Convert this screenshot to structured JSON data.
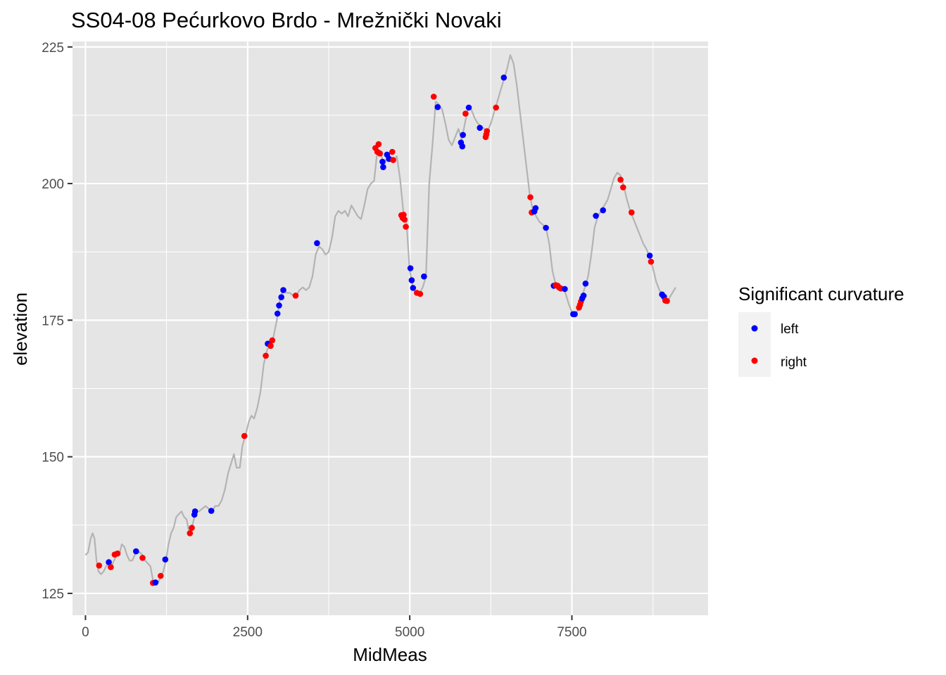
{
  "chart_data": {
    "type": "scatter",
    "title": "SS04-08 Pećurkovo Brdo - Mrežnički Novaki",
    "xlabel": "MidMeas",
    "ylabel": "elevation",
    "xlim": [
      -200,
      9600
    ],
    "ylim": [
      121,
      226
    ],
    "x_ticks": [
      0,
      2500,
      5000,
      7500
    ],
    "x_tick_labels": [
      "0",
      "2500",
      "5000",
      "7500"
    ],
    "y_ticks": [
      125,
      150,
      175,
      200,
      225
    ],
    "y_tick_labels": [
      "125",
      "150",
      "175",
      "200",
      "225"
    ],
    "grid": true,
    "legend": {
      "title": "Significant curvature",
      "position": "right",
      "entries": [
        {
          "label": "left",
          "color": "#0000ff"
        },
        {
          "label": "right",
          "color": "#ff0000"
        }
      ]
    },
    "colors": {
      "panel": "#e5e5e5",
      "grid": "#ffffff",
      "line": "#b3b3b3",
      "left": "#0000ff",
      "right": "#ff0000"
    },
    "line_series": [
      [
        0,
        132
      ],
      [
        40,
        132.5
      ],
      [
        80,
        135
      ],
      [
        110,
        136
      ],
      [
        140,
        135
      ],
      [
        170,
        131
      ],
      [
        200,
        129
      ],
      [
        240,
        128.5
      ],
      [
        280,
        129
      ],
      [
        320,
        130
      ],
      [
        360,
        130.5
      ],
      [
        400,
        130
      ],
      [
        440,
        131
      ],
      [
        480,
        132
      ],
      [
        520,
        132
      ],
      [
        560,
        134
      ],
      [
        600,
        133.5
      ],
      [
        640,
        132
      ],
      [
        680,
        131
      ],
      [
        720,
        131
      ],
      [
        780,
        132.5
      ],
      [
        840,
        132.5
      ],
      [
        880,
        132
      ],
      [
        920,
        131
      ],
      [
        960,
        130.5
      ],
      [
        1000,
        130
      ],
      [
        1040,
        127.5
      ],
      [
        1080,
        127
      ],
      [
        1120,
        127
      ],
      [
        1160,
        128
      ],
      [
        1200,
        129
      ],
      [
        1240,
        131
      ],
      [
        1280,
        134
      ],
      [
        1320,
        136
      ],
      [
        1360,
        137
      ],
      [
        1400,
        139
      ],
      [
        1440,
        139.5
      ],
      [
        1480,
        140
      ],
      [
        1520,
        139
      ],
      [
        1560,
        138.5
      ],
      [
        1600,
        136
      ],
      [
        1650,
        137.5
      ],
      [
        1700,
        140
      ],
      [
        1750,
        140
      ],
      [
        1800,
        140.5
      ],
      [
        1850,
        141
      ],
      [
        1900,
        140.5
      ],
      [
        1950,
        140
      ],
      [
        2000,
        141
      ],
      [
        2050,
        141
      ],
      [
        2100,
        142
      ],
      [
        2150,
        144
      ],
      [
        2200,
        147
      ],
      [
        2250,
        149
      ],
      [
        2290,
        150.5
      ],
      [
        2330,
        148
      ],
      [
        2380,
        148
      ],
      [
        2420,
        152
      ],
      [
        2470,
        154
      ],
      [
        2520,
        156.5
      ],
      [
        2560,
        157.5
      ],
      [
        2600,
        157
      ],
      [
        2650,
        159
      ],
      [
        2700,
        162
      ],
      [
        2750,
        167
      ],
      [
        2800,
        169.5
      ],
      [
        2860,
        171
      ],
      [
        2900,
        172
      ],
      [
        2950,
        175
      ],
      [
        3000,
        179
      ],
      [
        3050,
        180.5
      ],
      [
        3100,
        180
      ],
      [
        3150,
        180
      ],
      [
        3200,
        179.5
      ],
      [
        3250,
        179.5
      ],
      [
        3300,
        180.5
      ],
      [
        3350,
        181
      ],
      [
        3400,
        180.5
      ],
      [
        3450,
        181
      ],
      [
        3500,
        183
      ],
      [
        3550,
        187
      ],
      [
        3600,
        188.5
      ],
      [
        3650,
        188
      ],
      [
        3700,
        187
      ],
      [
        3750,
        187.5
      ],
      [
        3800,
        190
      ],
      [
        3850,
        194
      ],
      [
        3900,
        195
      ],
      [
        3950,
        194.5
      ],
      [
        4000,
        195
      ],
      [
        4050,
        194
      ],
      [
        4100,
        196
      ],
      [
        4150,
        195
      ],
      [
        4200,
        194
      ],
      [
        4250,
        193.5
      ],
      [
        4300,
        196
      ],
      [
        4350,
        199
      ],
      [
        4400,
        200
      ],
      [
        4450,
        200.5
      ],
      [
        4500,
        206
      ],
      [
        4550,
        206
      ],
      [
        4600,
        203
      ],
      [
        4650,
        205
      ],
      [
        4700,
        205
      ],
      [
        4750,
        204
      ],
      [
        4800,
        205
      ],
      [
        4850,
        201
      ],
      [
        4900,
        195
      ],
      [
        4950,
        193
      ],
      [
        5000,
        184
      ],
      [
        5050,
        181
      ],
      [
        5100,
        180
      ],
      [
        5150,
        180
      ],
      [
        5200,
        181
      ],
      [
        5250,
        183
      ],
      [
        5300,
        200
      ],
      [
        5350,
        207
      ],
      [
        5400,
        215
      ],
      [
        5450,
        214.5
      ],
      [
        5500,
        213.5
      ],
      [
        5550,
        211
      ],
      [
        5600,
        208
      ],
      [
        5650,
        207
      ],
      [
        5700,
        208.5
      ],
      [
        5750,
        210
      ],
      [
        5800,
        208
      ],
      [
        5850,
        211
      ],
      [
        5900,
        214
      ],
      [
        5950,
        213.5
      ],
      [
        6000,
        212
      ],
      [
        6050,
        211
      ],
      [
        6100,
        210.5
      ],
      [
        6150,
        210
      ],
      [
        6200,
        209.5
      ],
      [
        6250,
        211
      ],
      [
        6300,
        213
      ],
      [
        6350,
        215
      ],
      [
        6400,
        217
      ],
      [
        6450,
        219
      ],
      [
        6500,
        221
      ],
      [
        6550,
        223.5
      ],
      [
        6600,
        222
      ],
      [
        6650,
        218
      ],
      [
        6700,
        213
      ],
      [
        6750,
        208
      ],
      [
        6800,
        203
      ],
      [
        6850,
        198
      ],
      [
        6900,
        195
      ],
      [
        6950,
        194
      ],
      [
        7000,
        193
      ],
      [
        7050,
        192.5
      ],
      [
        7100,
        192
      ],
      [
        7150,
        189
      ],
      [
        7200,
        184
      ],
      [
        7250,
        181.5
      ],
      [
        7300,
        181
      ],
      [
        7350,
        181
      ],
      [
        7400,
        180
      ],
      [
        7450,
        178
      ],
      [
        7500,
        176.5
      ],
      [
        7550,
        176
      ],
      [
        7600,
        177
      ],
      [
        7650,
        179
      ],
      [
        7700,
        181
      ],
      [
        7750,
        183
      ],
      [
        7800,
        187
      ],
      [
        7850,
        192
      ],
      [
        7900,
        194
      ],
      [
        7950,
        195
      ],
      [
        8000,
        196
      ],
      [
        8050,
        197
      ],
      [
        8100,
        199
      ],
      [
        8150,
        201
      ],
      [
        8200,
        202
      ],
      [
        8250,
        201.5
      ],
      [
        8300,
        199.5
      ],
      [
        8350,
        197
      ],
      [
        8400,
        195
      ],
      [
        8450,
        193.5
      ],
      [
        8500,
        192
      ],
      [
        8550,
        190.5
      ],
      [
        8600,
        189
      ],
      [
        8650,
        188
      ],
      [
        8700,
        186.5
      ],
      [
        8750,
        184.5
      ],
      [
        8800,
        182
      ],
      [
        8850,
        180.5
      ],
      [
        8900,
        179.5
      ],
      [
        8950,
        178.5
      ],
      [
        9000,
        179
      ],
      [
        9050,
        180
      ],
      [
        9100,
        181
      ]
    ],
    "points": [
      {
        "x": 210,
        "y": 130.1,
        "side": "right"
      },
      {
        "x": 360,
        "y": 130.7,
        "side": "left"
      },
      {
        "x": 390,
        "y": 129.8,
        "side": "right"
      },
      {
        "x": 450,
        "y": 132.1,
        "side": "right"
      },
      {
        "x": 495,
        "y": 132.3,
        "side": "right"
      },
      {
        "x": 780,
        "y": 132.7,
        "side": "left"
      },
      {
        "x": 880,
        "y": 131.5,
        "side": "right"
      },
      {
        "x": 1040,
        "y": 126.9,
        "side": "right"
      },
      {
        "x": 1080,
        "y": 127,
        "side": "left"
      },
      {
        "x": 1160,
        "y": 128.2,
        "side": "right"
      },
      {
        "x": 1230,
        "y": 131.2,
        "side": "left"
      },
      {
        "x": 1610,
        "y": 136,
        "side": "right"
      },
      {
        "x": 1640,
        "y": 137,
        "side": "right"
      },
      {
        "x": 1680,
        "y": 139.4,
        "side": "left"
      },
      {
        "x": 1690,
        "y": 140,
        "side": "left"
      },
      {
        "x": 1940,
        "y": 140.1,
        "side": "left"
      },
      {
        "x": 2450,
        "y": 153.8,
        "side": "right"
      },
      {
        "x": 2780,
        "y": 168.5,
        "side": "right"
      },
      {
        "x": 2810,
        "y": 170.7,
        "side": "left"
      },
      {
        "x": 2855,
        "y": 170.3,
        "side": "right"
      },
      {
        "x": 2880,
        "y": 171.3,
        "side": "right"
      },
      {
        "x": 2960,
        "y": 176.2,
        "side": "left"
      },
      {
        "x": 2985,
        "y": 177.7,
        "side": "left"
      },
      {
        "x": 3020,
        "y": 179.2,
        "side": "left"
      },
      {
        "x": 3050,
        "y": 180.5,
        "side": "left"
      },
      {
        "x": 3240,
        "y": 179.5,
        "side": "right"
      },
      {
        "x": 3570,
        "y": 189.1,
        "side": "left"
      },
      {
        "x": 4470,
        "y": 206.5,
        "side": "right"
      },
      {
        "x": 4500,
        "y": 205.8,
        "side": "right"
      },
      {
        "x": 4520,
        "y": 207.2,
        "side": "right"
      },
      {
        "x": 4540,
        "y": 205.5,
        "side": "right"
      },
      {
        "x": 4580,
        "y": 204,
        "side": "left"
      },
      {
        "x": 4590,
        "y": 203,
        "side": "left"
      },
      {
        "x": 4650,
        "y": 205.3,
        "side": "left"
      },
      {
        "x": 4680,
        "y": 204.5,
        "side": "left"
      },
      {
        "x": 4730,
        "y": 205.8,
        "side": "right"
      },
      {
        "x": 4745,
        "y": 204.3,
        "side": "right"
      },
      {
        "x": 4870,
        "y": 194.2,
        "side": "right"
      },
      {
        "x": 4890,
        "y": 193.7,
        "side": "right"
      },
      {
        "x": 4905,
        "y": 194.3,
        "side": "right"
      },
      {
        "x": 4920,
        "y": 193.4,
        "side": "right"
      },
      {
        "x": 4940,
        "y": 192.1,
        "side": "right"
      },
      {
        "x": 5010,
        "y": 184.5,
        "side": "left"
      },
      {
        "x": 5030,
        "y": 182.3,
        "side": "left"
      },
      {
        "x": 5050,
        "y": 180.9,
        "side": "left"
      },
      {
        "x": 5110,
        "y": 180,
        "side": "right"
      },
      {
        "x": 5160,
        "y": 179.8,
        "side": "right"
      },
      {
        "x": 5220,
        "y": 183,
        "side": "left"
      },
      {
        "x": 5370,
        "y": 215.9,
        "side": "right"
      },
      {
        "x": 5430,
        "y": 214,
        "side": "left"
      },
      {
        "x": 5790,
        "y": 207.5,
        "side": "left"
      },
      {
        "x": 5810,
        "y": 206.8,
        "side": "left"
      },
      {
        "x": 5820,
        "y": 208.9,
        "side": "left"
      },
      {
        "x": 5860,
        "y": 212.8,
        "side": "right"
      },
      {
        "x": 5910,
        "y": 213.9,
        "side": "left"
      },
      {
        "x": 6080,
        "y": 210.2,
        "side": "left"
      },
      {
        "x": 6170,
        "y": 208.5,
        "side": "right"
      },
      {
        "x": 6180,
        "y": 209,
        "side": "right"
      },
      {
        "x": 6190,
        "y": 209.6,
        "side": "right"
      },
      {
        "x": 6330,
        "y": 213.9,
        "side": "right"
      },
      {
        "x": 6450,
        "y": 219.4,
        "side": "left"
      },
      {
        "x": 6860,
        "y": 197.5,
        "side": "right"
      },
      {
        "x": 6880,
        "y": 194.7,
        "side": "right"
      },
      {
        "x": 6920,
        "y": 194.9,
        "side": "left"
      },
      {
        "x": 6940,
        "y": 195.5,
        "side": "left"
      },
      {
        "x": 7100,
        "y": 191.9,
        "side": "left"
      },
      {
        "x": 7220,
        "y": 181.3,
        "side": "left"
      },
      {
        "x": 7250,
        "y": 181.4,
        "side": "right"
      },
      {
        "x": 7280,
        "y": 181.3,
        "side": "right"
      },
      {
        "x": 7300,
        "y": 181,
        "side": "right"
      },
      {
        "x": 7330,
        "y": 180.8,
        "side": "right"
      },
      {
        "x": 7390,
        "y": 180.7,
        "side": "left"
      },
      {
        "x": 7520,
        "y": 176.1,
        "side": "left"
      },
      {
        "x": 7545,
        "y": 176.1,
        "side": "left"
      },
      {
        "x": 7610,
        "y": 177.3,
        "side": "right"
      },
      {
        "x": 7625,
        "y": 177.8,
        "side": "right"
      },
      {
        "x": 7640,
        "y": 178.4,
        "side": "right"
      },
      {
        "x": 7660,
        "y": 179,
        "side": "left"
      },
      {
        "x": 7680,
        "y": 179.5,
        "side": "left"
      },
      {
        "x": 7710,
        "y": 181.7,
        "side": "left"
      },
      {
        "x": 7870,
        "y": 194.1,
        "side": "left"
      },
      {
        "x": 7980,
        "y": 195.1,
        "side": "left"
      },
      {
        "x": 8250,
        "y": 200.7,
        "side": "right"
      },
      {
        "x": 8290,
        "y": 199.3,
        "side": "right"
      },
      {
        "x": 8420,
        "y": 194.7,
        "side": "right"
      },
      {
        "x": 8700,
        "y": 186.8,
        "side": "left"
      },
      {
        "x": 8720,
        "y": 185.7,
        "side": "right"
      },
      {
        "x": 8890,
        "y": 179.7,
        "side": "left"
      },
      {
        "x": 8920,
        "y": 179.3,
        "side": "left"
      },
      {
        "x": 8940,
        "y": 178.6,
        "side": "right"
      },
      {
        "x": 8965,
        "y": 178.5,
        "side": "right"
      }
    ]
  }
}
